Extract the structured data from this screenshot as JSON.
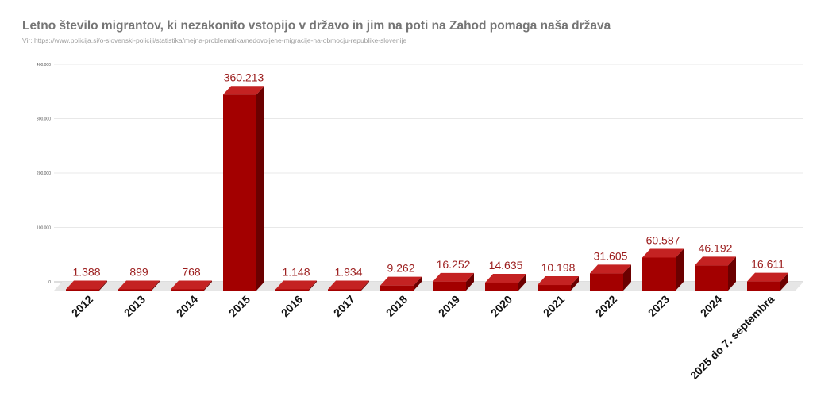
{
  "chart_data": {
    "type": "bar",
    "title": "Letno število migrantov, ki nezakonito vstopijo v državo in jim na poti na Zahod pomaga naša država",
    "subtitle": "Vir: https://www.policija.si/o-slovenski-policiji/statistika/mejna-problematika/nedovoljene-migracije-na-obmocju-republike-slovenije",
    "categories": [
      "2012",
      "2013",
      "2014",
      "2015",
      "2016",
      "2017",
      "2018",
      "2019",
      "2020",
      "2021",
      "2022",
      "2023",
      "2024",
      "2025 do 7. septembra"
    ],
    "values": [
      1388,
      899,
      768,
      360213,
      1148,
      1934,
      9262,
      16252,
      14635,
      10198,
      31605,
      60587,
      46192,
      16611
    ],
    "data_labels": [
      "1.388",
      "899",
      "768",
      "360.213",
      "1.148",
      "1.934",
      "9.262",
      "16.252",
      "14.635",
      "10.198",
      "31.605",
      "60.587",
      "46.192",
      "16.611"
    ],
    "y_ticks": [
      0,
      100000,
      200000,
      300000,
      400000
    ],
    "y_tick_labels": [
      "0",
      "100.000",
      "200.000",
      "300.000",
      "400.000"
    ],
    "ylim": [
      0,
      400000
    ],
    "grid": true,
    "legend": "none",
    "colors": {
      "bar_front": "#a30000",
      "bar_top": "#c42222",
      "bar_side": "#6b0000",
      "label": "#9b1c1c",
      "floor": "#e6e6e6"
    }
  }
}
